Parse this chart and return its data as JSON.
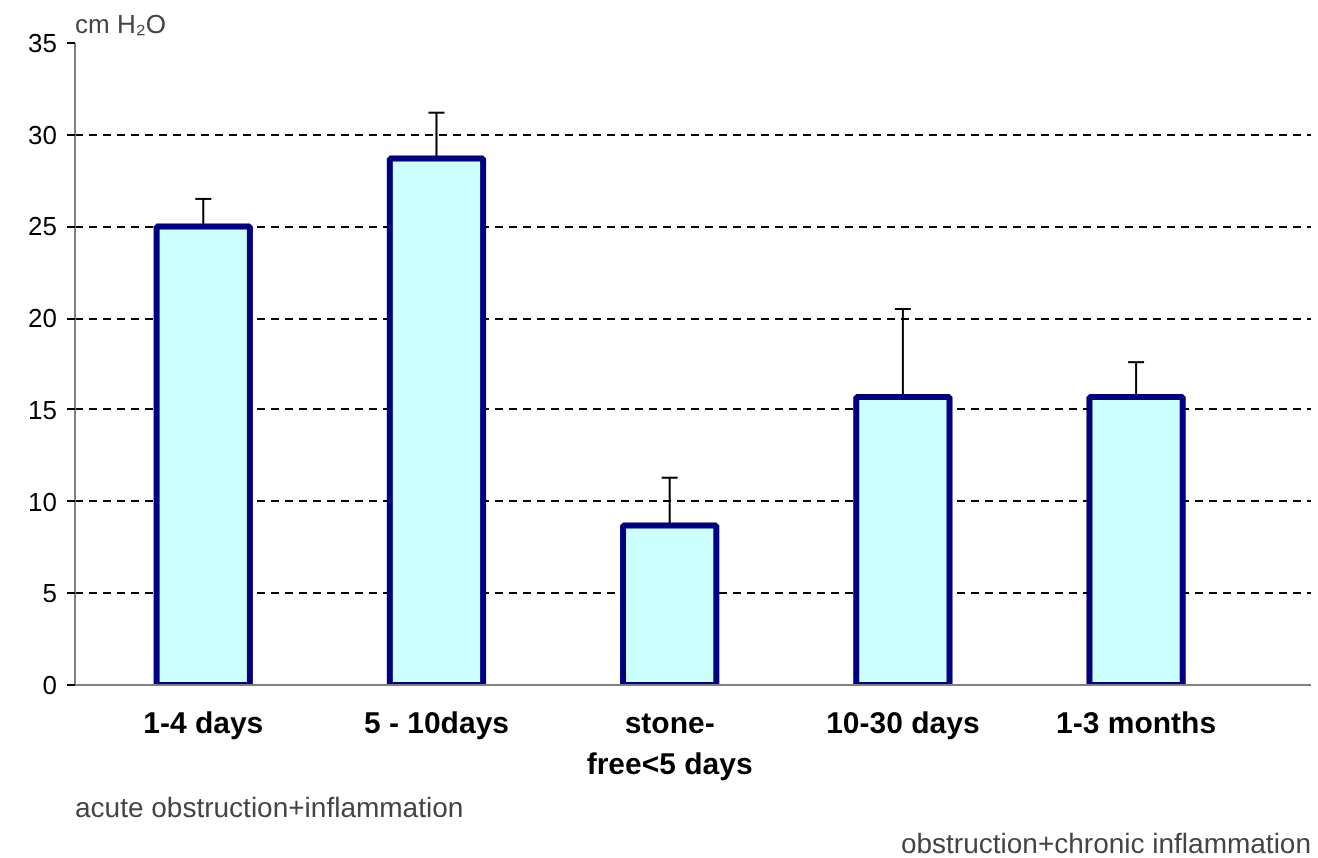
{
  "chart_data": {
    "type": "bar",
    "ylabel": "cm H₂O",
    "categories": [
      "1-4 days",
      "5 - 10days",
      "stone-\nfree<5 days",
      "10-30 days",
      "1-3 months"
    ],
    "values": [
      25.0,
      28.7,
      8.7,
      15.7,
      15.7
    ],
    "errors": [
      1.5,
      2.5,
      2.6,
      4.8,
      1.9
    ],
    "color": "#ccffff",
    "ylim": [
      0,
      35
    ],
    "yticks": [
      0,
      5,
      10,
      15,
      20,
      25,
      30,
      35
    ],
    "grid": "y",
    "annotations": [
      "acute obstruction+inflammation",
      "obstruction+chronic inflammation"
    ]
  }
}
